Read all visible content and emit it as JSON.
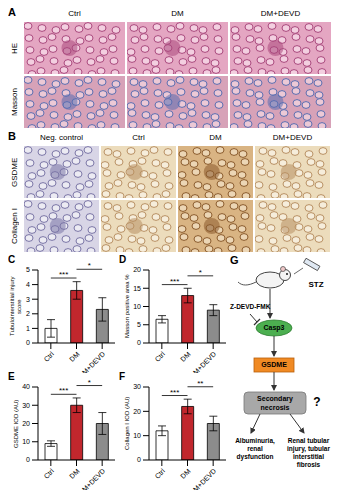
{
  "panel_A": {
    "label": "A",
    "columns": [
      "Ctrl",
      "DM",
      "DM+DEVD"
    ],
    "rows": [
      "HE",
      "Masson"
    ]
  },
  "panel_B": {
    "label": "B",
    "columns": [
      "Neg. control",
      "Ctrl",
      "DM",
      "DM+DEVD"
    ],
    "rows": [
      "GSDME",
      "Collagen I"
    ]
  },
  "chart_data": [
    {
      "panel": "C",
      "type": "bar",
      "y_label": "Tubulointerstitial injury score",
      "categories": [
        "Ctrl",
        "DM",
        "DM+DEVD"
      ],
      "values": [
        1.0,
        3.6,
        2.3
      ],
      "errors": [
        0.6,
        0.6,
        0.8
      ],
      "colors": [
        "#ffffff",
        "#c1272d",
        "#8c8c8c"
      ],
      "ylim": [
        0,
        5
      ],
      "yticks": [
        0,
        1,
        2,
        3,
        4,
        5
      ],
      "significance": [
        {
          "groups": [
            "Ctrl",
            "DM"
          ],
          "label": "***"
        },
        {
          "groups": [
            "DM",
            "DM+DEVD"
          ],
          "label": "*"
        }
      ]
    },
    {
      "panel": "D",
      "type": "bar",
      "y_label": "Masson positive area %",
      "categories": [
        "Ctrl",
        "DM",
        "DM+DEVD"
      ],
      "values": [
        6.5,
        13,
        9
      ],
      "errors": [
        1,
        2,
        1.5
      ],
      "colors": [
        "#ffffff",
        "#c1272d",
        "#8c8c8c"
      ],
      "ylim": [
        0,
        20
      ],
      "yticks": [
        0,
        5,
        10,
        15,
        20
      ],
      "significance": [
        {
          "groups": [
            "Ctrl",
            "DM"
          ],
          "label": "***"
        },
        {
          "groups": [
            "DM",
            "DM+DEVD"
          ],
          "label": "*"
        }
      ]
    },
    {
      "panel": "E",
      "type": "bar",
      "y_label": "GSDME IOD (AU)",
      "categories": [
        "Ctrl",
        "DM",
        "DM+DEVD"
      ],
      "values": [
        9,
        30,
        20
      ],
      "errors": [
        1.5,
        4,
        6
      ],
      "colors": [
        "#ffffff",
        "#c1272d",
        "#8c8c8c"
      ],
      "ylim": [
        0,
        40
      ],
      "yticks": [
        0,
        10,
        20,
        30,
        40
      ],
      "significance": [
        {
          "groups": [
            "Ctrl",
            "DM"
          ],
          "label": "***"
        },
        {
          "groups": [
            "DM",
            "DM+DEVD"
          ],
          "label": "*"
        }
      ]
    },
    {
      "panel": "F",
      "type": "bar",
      "y_label": "Collagen I IOD (AU)",
      "categories": [
        "Ctrl",
        "DM",
        "DM+DEVD"
      ],
      "values": [
        12,
        22,
        15
      ],
      "errors": [
        2,
        3,
        3
      ],
      "colors": [
        "#ffffff",
        "#c1272d",
        "#8c8c8c"
      ],
      "ylim": [
        0,
        30
      ],
      "yticks": [
        0,
        10,
        20,
        30
      ],
      "significance": [
        {
          "groups": [
            "Ctrl",
            "DM"
          ],
          "label": "***"
        },
        {
          "groups": [
            "DM",
            "DM+DEVD"
          ],
          "label": "**"
        }
      ]
    }
  ],
  "panel_G": {
    "label": "G",
    "stimulus": "STZ",
    "inhibitor": "Z-DEVD-FMK",
    "enzyme": "Casp3",
    "substrate": "GSDME",
    "outcome": "Secondary necrosis",
    "question": "?",
    "effects": [
      "Albuminuria, renal dysfunction",
      "Renal tubular injury, tubular interstitial fibrosis"
    ]
  }
}
